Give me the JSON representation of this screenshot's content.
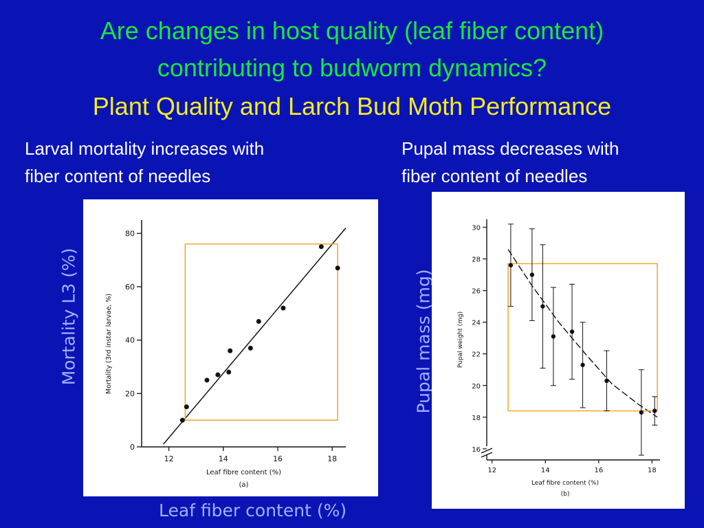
{
  "slide": {
    "title_line1": "Are changes in host quality (leaf fiber content)",
    "title_line2": "contributing to budworm dynamics?",
    "title_line3": "Plant Quality and Larch Bud Moth Performance",
    "left_caption_line1": "Larval mortality increases with",
    "left_caption_line2": "fiber content of needles",
    "right_caption_line1": "Pupal mass decreases with",
    "right_caption_line2": "fiber content of needles",
    "left_axis_label": "Mortality L3 (%)",
    "right_axis_label": "Pupal mass (mg)",
    "bottom_axis_label": "Leaf fiber content (%)"
  },
  "colors": {
    "background": "#0a14b4",
    "title": "#18e83a",
    "subtitle": "#f4ec22",
    "highlight_box": "#f5a623",
    "axis_label": "#9ab3ff"
  },
  "chart_data": [
    {
      "type": "scatter",
      "panel": "(a)",
      "xlabel": "Leaf fibre content (%)",
      "ylabel": "Mortality (3rd instar larvae, %)",
      "xlim": [
        11,
        18.5
      ],
      "ylim": [
        0,
        85
      ],
      "xticks": [
        "12",
        "14",
        "16",
        "18"
      ],
      "yticks": [
        "0",
        "20",
        "40",
        "60",
        "80"
      ],
      "x": [
        12.5,
        12.65,
        13.4,
        13.8,
        14.2,
        14.25,
        15.0,
        15.3,
        16.2,
        17.6,
        18.2
      ],
      "y": [
        10,
        15,
        25,
        27,
        28,
        36,
        37,
        47,
        52,
        75,
        67
      ],
      "fit_line": {
        "x": [
          11.8,
          18.5
        ],
        "y": [
          1,
          82
        ]
      },
      "highlight_box": {
        "x": [
          12.6,
          18.2
        ],
        "y": [
          10,
          76
        ]
      }
    },
    {
      "type": "scatter",
      "panel": "(b)",
      "xlabel": "Leaf fibre content (%)",
      "ylabel": "Pupal weight (mg)",
      "xlim": [
        11.8,
        18.3
      ],
      "ylim": [
        15.3,
        30.5
      ],
      "xticks": [
        "12",
        "14",
        "16",
        "18"
      ],
      "yticks": [
        "16",
        "18",
        "20",
        "22",
        "24",
        "26",
        "28",
        "30"
      ],
      "axis_break": true,
      "x": [
        12.7,
        13.5,
        13.9,
        14.3,
        15.0,
        15.4,
        16.3,
        17.6,
        18.1
      ],
      "y": [
        27.6,
        27.0,
        25.0,
        23.1,
        23.4,
        21.3,
        20.3,
        18.3,
        18.4
      ],
      "error": [
        2.6,
        2.9,
        3.9,
        3.1,
        3.0,
        2.7,
        1.9,
        2.7,
        0.9
      ],
      "trend_curve": {
        "x": [
          12.6,
          13.5,
          14.5,
          15.5,
          16.5,
          17.5,
          18.2
        ],
        "y": [
          28.6,
          26.3,
          24.0,
          22.0,
          20.1,
          18.8,
          18.0
        ]
      },
      "highlight_box": {
        "x": [
          12.6,
          18.2
        ],
        "y": [
          18.4,
          27.7
        ]
      }
    }
  ]
}
